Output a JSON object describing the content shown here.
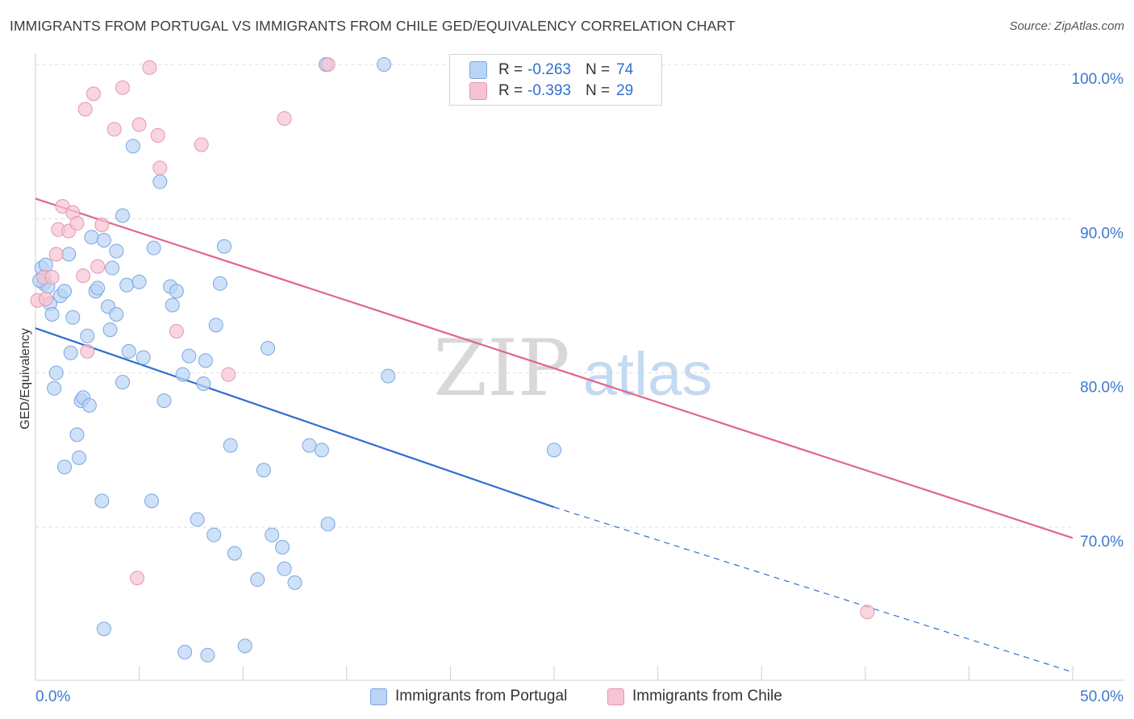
{
  "title": "IMMIGRANTS FROM PORTUGAL VS IMMIGRANTS FROM CHILE GED/EQUIVALENCY CORRELATION CHART",
  "source": "Source: ZipAtlas.com",
  "watermark": {
    "zip": "ZIP",
    "atlas": "atlas"
  },
  "legend": {
    "r_label": "R =",
    "n_label": "N =",
    "portugal": {
      "r": "-0.263",
      "n": "74"
    },
    "chile": {
      "r": "-0.393",
      "n": "29"
    }
  },
  "colors": {
    "portugal_fill": "#b9d4f5",
    "portugal_stroke": "#7aa7e0",
    "portugal_line": "#2f6fd0",
    "chile_fill": "#f7c3d3",
    "chile_stroke": "#e596b0",
    "chile_line": "#e0658f",
    "tick_label": "#3b78d0",
    "grid": "#dddddd"
  },
  "chart_data": {
    "type": "scatter",
    "title": "IMMIGRANTS FROM PORTUGAL VS IMMIGRANTS FROM CHILE GED/EQUIVALENCY CORRELATION CHART",
    "xlabel": "",
    "ylabel": "GED/Equivalency",
    "xlim": [
      0,
      50
    ],
    "ylim": [
      60.5,
      101
    ],
    "x_tick_labels": [
      "0.0%",
      "50.0%"
    ],
    "y_ticks": [
      70,
      80,
      90,
      100
    ],
    "y_tick_labels": [
      "70.0%",
      "80.0%",
      "90.0%",
      "100.0%"
    ],
    "grid": true,
    "series": [
      {
        "name": "Immigrants from Portugal",
        "points": [
          [
            0.3,
            86.8
          ],
          [
            0.4,
            85.8
          ],
          [
            0.5,
            87.0
          ],
          [
            0.6,
            85.6
          ],
          [
            0.7,
            84.5
          ],
          [
            0.8,
            83.8
          ],
          [
            1.0,
            80.0
          ],
          [
            0.9,
            79.0
          ],
          [
            1.2,
            85.0
          ],
          [
            1.4,
            85.3
          ],
          [
            1.6,
            87.7
          ],
          [
            1.7,
            81.3
          ],
          [
            1.8,
            83.6
          ],
          [
            2.0,
            76.0
          ],
          [
            2.1,
            74.5
          ],
          [
            1.4,
            73.9
          ],
          [
            2.2,
            78.2
          ],
          [
            2.3,
            78.4
          ],
          [
            2.5,
            82.4
          ],
          [
            2.6,
            77.9
          ],
          [
            2.7,
            88.8
          ],
          [
            2.9,
            85.3
          ],
          [
            3.0,
            85.5
          ],
          [
            3.2,
            71.7
          ],
          [
            3.3,
            63.4
          ],
          [
            3.3,
            88.6
          ],
          [
            3.5,
            84.3
          ],
          [
            3.6,
            82.8
          ],
          [
            3.7,
            86.8
          ],
          [
            3.9,
            87.9
          ],
          [
            3.9,
            83.8
          ],
          [
            4.2,
            79.4
          ],
          [
            4.2,
            90.2
          ],
          [
            4.4,
            85.7
          ],
          [
            4.5,
            81.4
          ],
          [
            4.7,
            94.7
          ],
          [
            5.0,
            85.9
          ],
          [
            5.2,
            81.0
          ],
          [
            5.6,
            71.7
          ],
          [
            5.7,
            88.1
          ],
          [
            6.0,
            92.4
          ],
          [
            6.2,
            78.2
          ],
          [
            6.5,
            85.6
          ],
          [
            6.6,
            84.4
          ],
          [
            6.8,
            85.3
          ],
          [
            7.1,
            79.9
          ],
          [
            7.2,
            61.9
          ],
          [
            7.4,
            81.1
          ],
          [
            7.8,
            70.5
          ],
          [
            8.1,
            79.3
          ],
          [
            8.2,
            80.8
          ],
          [
            8.3,
            61.7
          ],
          [
            8.6,
            69.5
          ],
          [
            8.7,
            83.1
          ],
          [
            8.9,
            85.8
          ],
          [
            9.1,
            88.2
          ],
          [
            9.4,
            75.3
          ],
          [
            9.6,
            68.3
          ],
          [
            10.1,
            62.3
          ],
          [
            10.7,
            66.6
          ],
          [
            11.0,
            73.7
          ],
          [
            11.2,
            81.6
          ],
          [
            11.4,
            69.5
          ],
          [
            11.9,
            68.7
          ],
          [
            12.0,
            67.3
          ],
          [
            12.5,
            66.4
          ],
          [
            13.2,
            75.3
          ],
          [
            13.8,
            75.0
          ],
          [
            14.1,
            70.2
          ],
          [
            14.0,
            100.0
          ],
          [
            16.8,
            100.0
          ],
          [
            17.0,
            79.8
          ],
          [
            25.0,
            75.0
          ],
          [
            0.2,
            86.0
          ]
        ],
        "trend": {
          "x0": 0,
          "y0": 82.9,
          "x1": 25.0,
          "y1": 71.3,
          "dash_to_x": 50,
          "dash_to_y": 60.6
        }
      },
      {
        "name": "Immigrants from Chile",
        "points": [
          [
            0.1,
            84.7
          ],
          [
            0.4,
            86.2
          ],
          [
            0.8,
            86.2
          ],
          [
            1.0,
            87.7
          ],
          [
            1.1,
            89.3
          ],
          [
            1.3,
            90.8
          ],
          [
            1.6,
            89.2
          ],
          [
            1.8,
            90.4
          ],
          [
            2.0,
            89.7
          ],
          [
            2.3,
            86.3
          ],
          [
            2.4,
            97.1
          ],
          [
            2.5,
            81.4
          ],
          [
            2.8,
            98.1
          ],
          [
            3.0,
            86.9
          ],
          [
            3.2,
            89.6
          ],
          [
            3.8,
            95.8
          ],
          [
            4.2,
            98.5
          ],
          [
            4.9,
            66.7
          ],
          [
            5.0,
            96.1
          ],
          [
            5.5,
            99.8
          ],
          [
            5.9,
            95.4
          ],
          [
            6.0,
            93.3
          ],
          [
            6.8,
            82.7
          ],
          [
            8.0,
            94.8
          ],
          [
            9.3,
            79.9
          ],
          [
            12.0,
            96.5
          ],
          [
            14.1,
            100.0
          ],
          [
            0.5,
            84.8
          ],
          [
            40.1,
            64.5
          ]
        ],
        "trend": {
          "x0": 0,
          "y0": 91.3,
          "x1": 50,
          "y1": 69.3
        }
      }
    ]
  }
}
